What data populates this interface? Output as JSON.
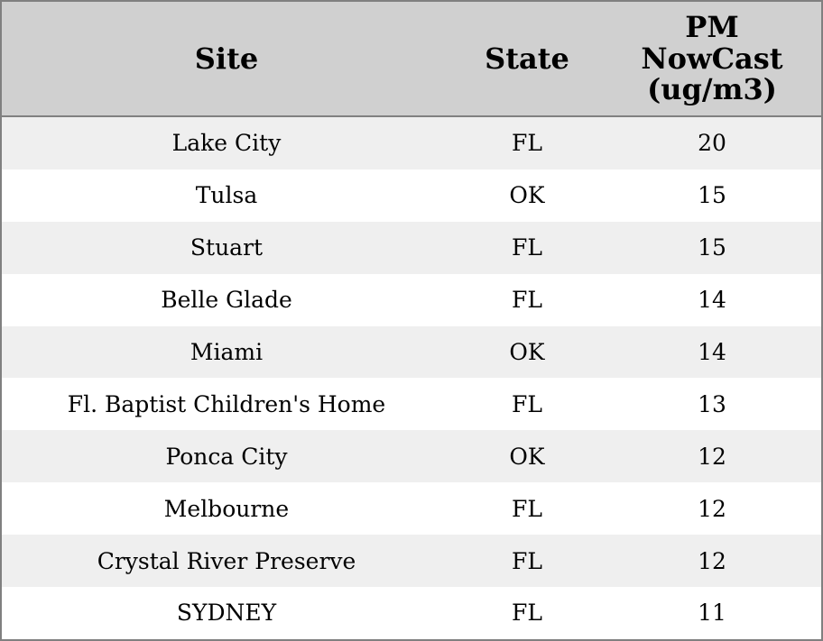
{
  "header": {
    "columns": [
      "Site",
      "State",
      "PM NowCast (ug/m3)"
    ]
  },
  "table": {
    "rows": [
      [
        "Lake City",
        "FL",
        20
      ],
      [
        "Tulsa",
        "OK",
        15
      ],
      [
        "Stuart",
        "FL",
        15
      ],
      [
        "Belle Glade",
        "FL",
        14
      ],
      [
        "Miami",
        "OK",
        14
      ],
      [
        "Fl. Baptist Children's Home",
        "FL",
        13
      ],
      [
        "Ponca City",
        "OK",
        12
      ],
      [
        "Melbourne",
        "FL",
        12
      ],
      [
        "Crystal River Preserve",
        "FL",
        12
      ],
      [
        "SYDNEY",
        "FL",
        11
      ]
    ]
  }
}
